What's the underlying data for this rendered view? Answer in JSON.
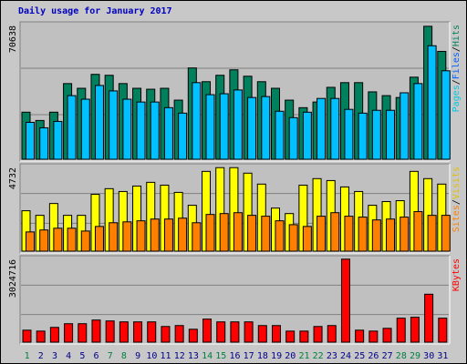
{
  "title": "Daily usage for January 2017",
  "label_separator": "/",
  "chart_data": [
    {
      "type": "bar",
      "categories": [
        "1",
        "2",
        "3",
        "4",
        "5",
        "6",
        "7",
        "8",
        "9",
        "10",
        "11",
        "12",
        "13",
        "14",
        "15",
        "16",
        "17",
        "18",
        "19",
        "20",
        "21",
        "22",
        "23",
        "24",
        "25",
        "26",
        "27",
        "28",
        "29",
        "30",
        "31"
      ],
      "category_colors": [
        "#008040",
        "#00008b",
        "#00008b",
        "#00008b",
        "#00008b",
        "#00008b",
        "#008040",
        "#008040",
        "#00008b",
        "#00008b",
        "#00008b",
        "#00008b",
        "#00008b",
        "#008040",
        "#008040",
        "#00008b",
        "#00008b",
        "#00008b",
        "#00008b",
        "#00008b",
        "#008040",
        "#008040",
        "#00008b",
        "#00008b",
        "#00008b",
        "#00008b",
        "#00008b",
        "#008040",
        "#008040",
        "#00008b",
        "#00008b"
      ],
      "extra_label": {
        "name": "Pages",
        "color": "#00c8e0"
      },
      "series": [
        {
          "name": "Hits",
          "color": "#00805c",
          "label_color": "#00805c",
          "values": [
            25000,
            20600,
            25000,
            40200,
            37700,
            45100,
            44600,
            40200,
            37700,
            37200,
            37700,
            31400,
            48500,
            41200,
            44600,
            47500,
            44100,
            41200,
            37700,
            31400,
            27400,
            30400,
            38200,
            40700,
            40700,
            35800,
            33800,
            32800,
            43600,
            70638,
            57300
          ]
        },
        {
          "name": "Files",
          "color": "#00c0ff",
          "label_color": "#0060ff",
          "values": [
            19600,
            16700,
            20100,
            33800,
            31900,
            39200,
            36300,
            31900,
            30400,
            30400,
            27400,
            24500,
            40700,
            34300,
            34800,
            36800,
            32800,
            33300,
            25500,
            22100,
            25000,
            32300,
            32300,
            26500,
            24500,
            26000,
            26000,
            35300,
            40200,
            60300,
            47000
          ]
        }
      ],
      "ylim": [
        0,
        73000
      ],
      "yticks": [
        70638
      ]
    },
    {
      "type": "bar",
      "series": [
        {
          "name": "Visits",
          "color": "#ffff00",
          "label_color": "#e0c000",
          "values": [
            2290,
            2030,
            2700,
            2030,
            2030,
            3220,
            3540,
            3380,
            3690,
            3900,
            3740,
            3330,
            2600,
            4520,
            4732,
            4732,
            4420,
            3800,
            2440,
            2130,
            3740,
            4110,
            4000,
            3640,
            3380,
            2600,
            2810,
            2860,
            4520,
            4110,
            3800
          ]
        },
        {
          "name": "Sites",
          "color": "#ff8000",
          "label_color": "#ff8000",
          "values": [
            1090,
            1200,
            1300,
            1300,
            1140,
            1400,
            1610,
            1660,
            1720,
            1820,
            1820,
            1870,
            1610,
            2080,
            2130,
            2180,
            2030,
            1980,
            1720,
            1500,
            1400,
            1980,
            2180,
            1980,
            1930,
            1770,
            1820,
            1930,
            2240,
            2030,
            2030
          ]
        }
      ],
      "ylim": [
        0,
        4950
      ],
      "yticks": [
        4732
      ]
    },
    {
      "type": "bar",
      "series": [
        {
          "name": "KBytes",
          "color": "#ff0000",
          "label_color": "#ff0000",
          "values": [
            437000,
            403000,
            538000,
            672000,
            672000,
            806000,
            773000,
            739000,
            739000,
            739000,
            571000,
            605000,
            470000,
            840000,
            739000,
            739000,
            739000,
            605000,
            605000,
            403000,
            403000,
            571000,
            605000,
            3024716,
            437000,
            403000,
            504000,
            874000,
            907000,
            1747000,
            874000
          ]
        }
      ],
      "ylim": [
        0,
        3150000
      ],
      "yticks": [
        3024716
      ]
    }
  ]
}
